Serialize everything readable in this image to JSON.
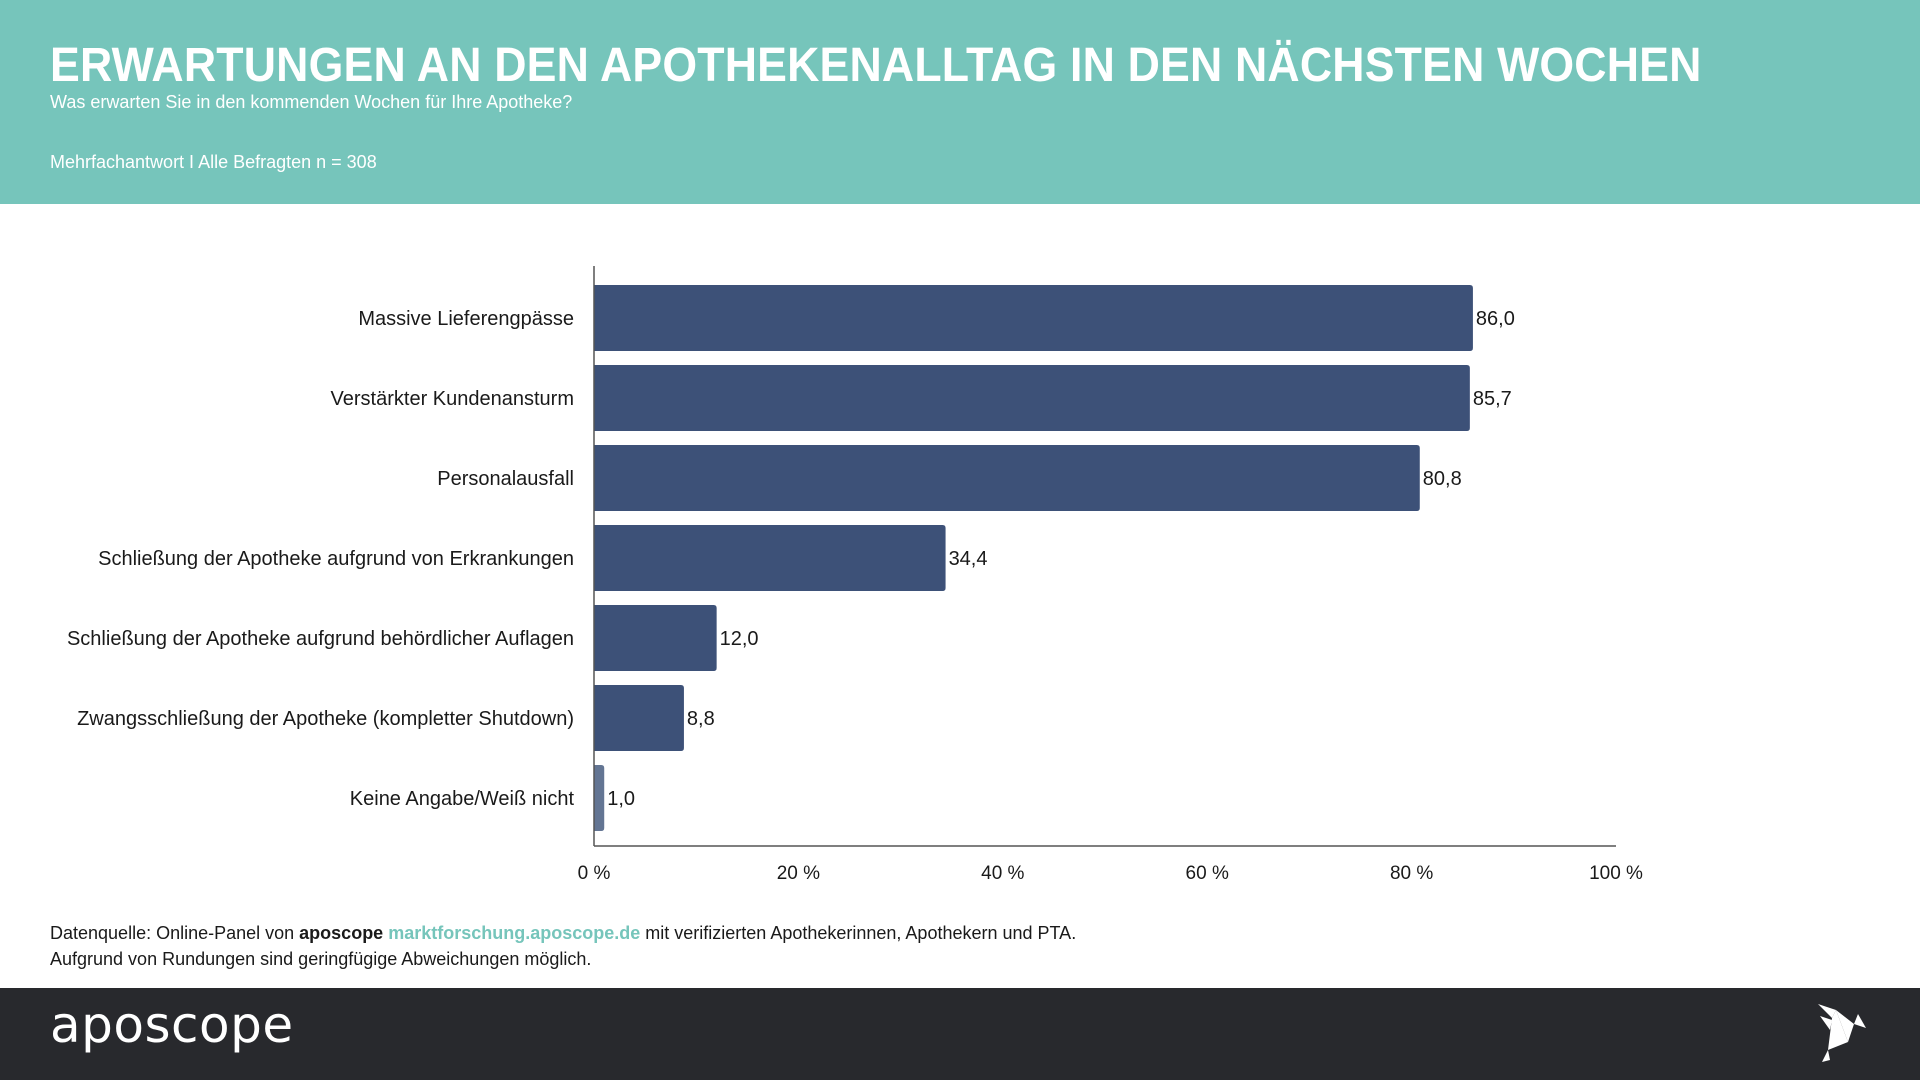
{
  "header": {
    "title": "ERWARTUNGEN AN DEN APOTHEKENALLTAG IN DEN NÄCHSTEN WOCHEN",
    "subtitle": "Was erwarten Sie in den kommenden Wochen für Ihre Apotheke?",
    "sample": "Mehrfachantwort I Alle Befragten n = 308"
  },
  "chart_data": {
    "type": "bar",
    "orientation": "horizontal",
    "categories": [
      "Massive Lieferengpässe",
      "Verstärkter Kundenansturm",
      "Personalausfall",
      "Schließung der Apotheke aufgrund von Erkrankungen",
      "Schließung der Apotheke aufgrund behördlicher Auflagen",
      "Zwangsschließung der Apotheke (kompletter Shutdown)",
      "Keine Angabe/Weiß nicht"
    ],
    "values": [
      86.0,
      85.7,
      80.8,
      34.4,
      12.0,
      8.8,
      1.0
    ],
    "value_labels": [
      "86,0",
      "85,7",
      "80,8",
      "34,4",
      "12,0",
      "8,8",
      "1,0"
    ],
    "bar_colors": [
      "#3d5178",
      "#3d5178",
      "#3d5178",
      "#3d5178",
      "#3d5178",
      "#3d5178",
      "#637593"
    ],
    "xlim": [
      0,
      100
    ],
    "xticks": [
      0,
      20,
      40,
      60,
      80,
      100
    ],
    "xtick_labels": [
      "0 %",
      "20 %",
      "40 %",
      "60 %",
      "80 %",
      "100 %"
    ],
    "title": "ERWARTUNGEN AN DEN APOTHEKENALLTAG IN DEN NÄCHSTEN WOCHEN",
    "xlabel": "",
    "ylabel": "",
    "grid": false,
    "legend": "none"
  },
  "footnote": {
    "prefix": "Datenquelle: Online-Panel von ",
    "brand": "aposcope",
    "link": "marktforschung.aposcope.de",
    "suffix": " mit verifizierten Apothekerinnen, Apothekern und PTA.",
    "line2": "Aufgrund von Rundungen sind geringfügige Abweichungen möglich."
  },
  "footer": {
    "logo": "aposcope",
    "icon": "origami-bird-icon"
  },
  "colors": {
    "header_bg": "#76c5bb",
    "footer_bg": "#28292d",
    "bar": "#3d5178",
    "bar_muted": "#637593",
    "link": "#76c5bb"
  }
}
